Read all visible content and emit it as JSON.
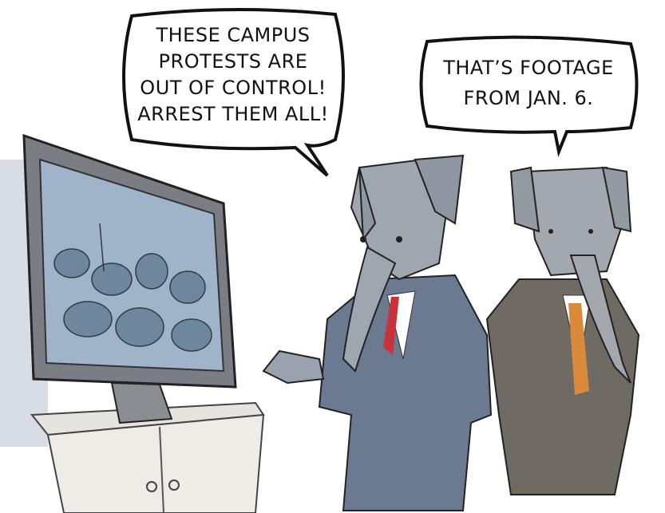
{
  "bubbles": [
    {
      "lines": [
        "THESE CAMPUS",
        "PROTESTS ARE",
        "OUT OF CONTROL!",
        "ARREST THEM ALL!"
      ]
    },
    {
      "lines": [
        "THAT’S FOOTAGE",
        "FROM JAN. 6."
      ]
    }
  ]
}
